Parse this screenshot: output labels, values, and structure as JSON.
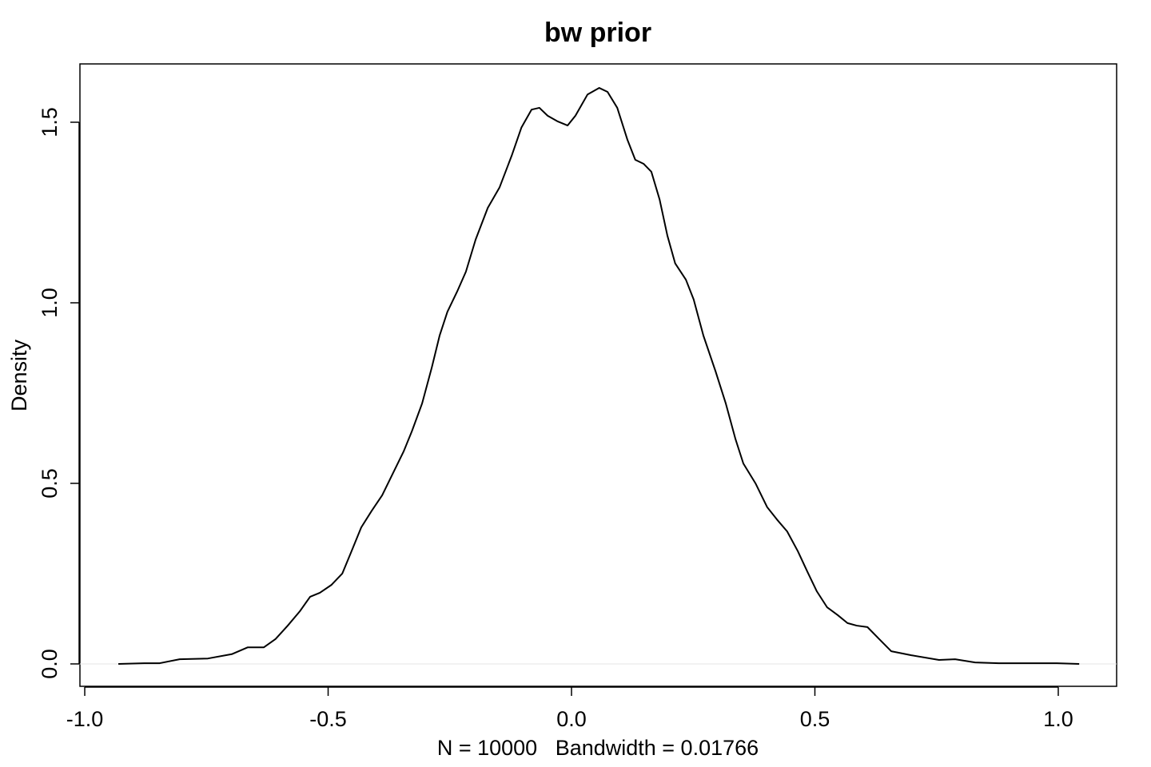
{
  "chart_data": {
    "type": "line",
    "title": "bw prior",
    "xlabel": "N = 10000   Bandwidth = 0.01766",
    "ylabel": "Density",
    "x": [
      -0.931,
      -0.878,
      -0.846,
      -0.805,
      -0.747,
      -0.698,
      -0.665,
      -0.632,
      -0.608,
      -0.583,
      -0.558,
      -0.537,
      -0.517,
      -0.493,
      -0.471,
      -0.452,
      -0.432,
      -0.411,
      -0.389,
      -0.369,
      -0.345,
      -0.328,
      -0.307,
      -0.287,
      -0.271,
      -0.255,
      -0.235,
      -0.217,
      -0.197,
      -0.172,
      -0.148,
      -0.123,
      -0.103,
      -0.082,
      -0.066,
      -0.049,
      -0.028,
      -0.008,
      0.008,
      0.033,
      0.057,
      0.074,
      0.094,
      0.115,
      0.131,
      0.148,
      0.164,
      0.181,
      0.197,
      0.213,
      0.235,
      0.251,
      0.271,
      0.296,
      0.317,
      0.337,
      0.353,
      0.378,
      0.402,
      0.422,
      0.443,
      0.465,
      0.484,
      0.504,
      0.525,
      0.547,
      0.567,
      0.586,
      0.608,
      0.632,
      0.657,
      0.698,
      0.755,
      0.788,
      0.829,
      0.878,
      0.944,
      0.997,
      1.043
    ],
    "values": [
      0,
      0.002,
      0.002,
      0.013,
      0.015,
      0.027,
      0.046,
      0.046,
      0.069,
      0.106,
      0.146,
      0.186,
      0.197,
      0.219,
      0.25,
      0.312,
      0.378,
      0.423,
      0.467,
      0.522,
      0.588,
      0.644,
      0.721,
      0.821,
      0.909,
      0.975,
      1.031,
      1.086,
      1.175,
      1.263,
      1.319,
      1.407,
      1.485,
      1.535,
      1.54,
      1.518,
      1.502,
      1.491,
      1.518,
      1.577,
      1.595,
      1.584,
      1.54,
      1.451,
      1.396,
      1.385,
      1.363,
      1.286,
      1.186,
      1.109,
      1.064,
      1.009,
      0.909,
      0.81,
      0.721,
      0.622,
      0.555,
      0.5,
      0.434,
      0.4,
      0.367,
      0.312,
      0.257,
      0.201,
      0.157,
      0.135,
      0.113,
      0.106,
      0.102,
      0.069,
      0.035,
      0.024,
      0.011,
      0.013,
      0.004,
      0.002,
      0.002,
      0.002,
      0
    ],
    "color": "#000000",
    "xlim": [
      -1.0099,
      1.1199
    ],
    "ylim": [
      -0.062,
      1.6615
    ],
    "xticks": [
      {
        "value": -1.0,
        "label": "-1.0"
      },
      {
        "value": -0.5,
        "label": "-0.5"
      },
      {
        "value": 0.0,
        "label": "0.0"
      },
      {
        "value": 0.5,
        "label": "0.5"
      },
      {
        "value": 1.0,
        "label": "1.0"
      }
    ],
    "yticks": [
      {
        "value": 0.0,
        "label": "0.0"
      },
      {
        "value": 0.5,
        "label": "0.5"
      },
      {
        "value": 1.0,
        "label": "1.0"
      },
      {
        "value": 1.5,
        "label": "1.5"
      }
    ]
  }
}
